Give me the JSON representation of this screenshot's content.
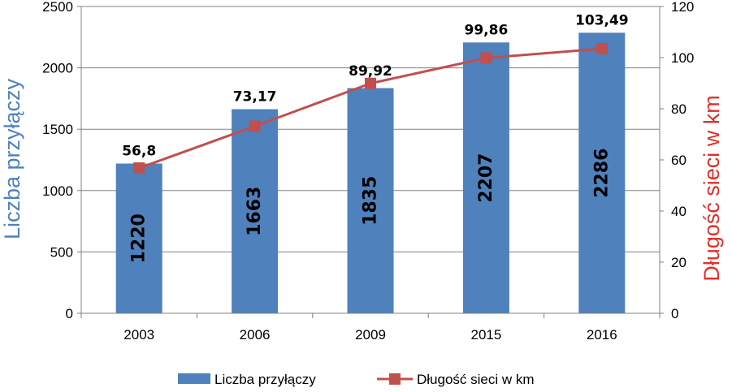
{
  "chart_data": {
    "type": "bar",
    "categories": [
      "2003",
      "2006",
      "2009",
      "2015",
      "2016"
    ],
    "series": [
      {
        "name": "Liczba przyłączy",
        "type": "bar",
        "axis": "left",
        "values": [
          1220,
          1663,
          1835,
          2207,
          2286
        ],
        "labels": [
          "1220",
          "1663",
          "1835",
          "2207",
          "2286"
        ],
        "color": "#4F81BD"
      },
      {
        "name": "Długość sieci w km",
        "type": "line",
        "axis": "right",
        "values": [
          56.8,
          73.17,
          89.92,
          99.86,
          103.49
        ],
        "labels": [
          "56,8",
          "73,17",
          "89,92",
          "99,86",
          "103,49"
        ],
        "color": "#C0504D",
        "marker": "square"
      }
    ],
    "y_left": {
      "label": "Liczba przyłączy",
      "lim": [
        0,
        2500
      ],
      "ticks": [
        "0",
        "500",
        "1000",
        "1500",
        "2000",
        "2500"
      ],
      "color": "#4F81BD"
    },
    "y_right": {
      "label": "Długość sieci w km",
      "lim": [
        0,
        120
      ],
      "ticks": [
        "0",
        "20",
        "40",
        "60",
        "80",
        "100",
        "120"
      ],
      "color": "#E0302A"
    },
    "grid": true,
    "legend": {
      "placement": "bottom",
      "entries": [
        "Liczba przyłączy",
        "Długość sieci w km"
      ]
    }
  }
}
